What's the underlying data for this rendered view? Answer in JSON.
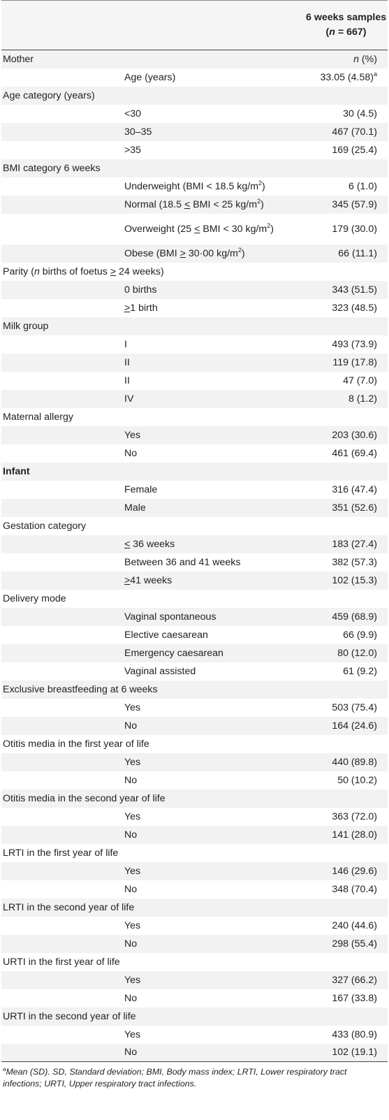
{
  "header": {
    "col_title": "6 weeks samples",
    "n_prefix": "(",
    "n_var": "n",
    "n_rest": " = 667)"
  },
  "rows": [
    {
      "label": "Mother",
      "sub": "",
      "value": "",
      "value_html": "<i>n</i> (%)"
    },
    {
      "label": "",
      "sub": "Age (years)",
      "value": "",
      "value_html": "33.05 (4.58)<sup>a</sup>"
    },
    {
      "label": "Age category (years)",
      "sub": "",
      "value": ""
    },
    {
      "label": "",
      "sub": "<30",
      "value": "30 (4.5)"
    },
    {
      "label": "",
      "sub": "30–35",
      "value": "467 (70.1)"
    },
    {
      "label": "",
      "sub": ">35",
      "value": "169 (25.4)"
    },
    {
      "label": "BMI category 6 weeks",
      "sub": "",
      "value": ""
    },
    {
      "label": "",
      "sub": "",
      "sub_html": "Underweight (BMI &lt; 18.5 kg/m<sup>2</sup>)",
      "value": "6 (1.0)"
    },
    {
      "label": "",
      "sub": "",
      "sub_html": "Normal (18.5 <u>&lt;</u> BMI &lt; 25 kg/m<sup>2</sup>)",
      "value": "345 (57.9)"
    },
    {
      "label": "",
      "sub": "",
      "sub_html": "Overweight (25 <u>&lt;</u> BMI &lt; 30 kg/m<sup>2</sup>)",
      "value": "179 (30.0)",
      "tall": true
    },
    {
      "label": "",
      "sub": "",
      "sub_html": "Obese (BMI <u>&gt;</u> 30·00 kg/m<sup>2</sup>)",
      "value": "66 (11.1)"
    },
    {
      "label": "",
      "label_html": "Parity (<i>n</i> births of foetus <u>&gt;</u> 24 weeks)",
      "sub": "",
      "value": ""
    },
    {
      "label": "",
      "sub": "0 births",
      "value": "343 (51.5)"
    },
    {
      "label": "",
      "sub": "",
      "sub_html": "<u>&gt;</u>1 birth",
      "value": "323 (48.5)"
    },
    {
      "label": "Milk group",
      "sub": "",
      "value": ""
    },
    {
      "label": "",
      "sub": "I",
      "value": "493 (73.9)"
    },
    {
      "label": "",
      "sub": "II",
      "value": "119 (17.8)"
    },
    {
      "label": "",
      "sub": "II",
      "value": "47 (7.0)"
    },
    {
      "label": "",
      "sub": "IV",
      "value": "8 (1.2)"
    },
    {
      "label": "Maternal allergy",
      "sub": "",
      "value": ""
    },
    {
      "label": "",
      "sub": "Yes",
      "value": "203 (30.6)"
    },
    {
      "label": "",
      "sub": "No",
      "value": "461 (69.4)"
    },
    {
      "label": "Infant",
      "sub": "",
      "value": "",
      "bold": true
    },
    {
      "label": "",
      "sub": "Female",
      "value": "316 (47.4)"
    },
    {
      "label": "",
      "sub": "Male",
      "value": "351 (52.6)"
    },
    {
      "label": "Gestation category",
      "sub": "",
      "value": ""
    },
    {
      "label": "",
      "sub": "",
      "sub_html": "<u>&lt;</u> 36 weeks",
      "value": "183 (27.4)"
    },
    {
      "label": "",
      "sub": "Between 36 and 41 weeks",
      "value": "382 (57.3)"
    },
    {
      "label": "",
      "sub": "",
      "sub_html": "<u>&gt;</u>41 weeks",
      "value": "102 (15.3)"
    },
    {
      "label": "Delivery mode",
      "sub": "",
      "value": ""
    },
    {
      "label": "",
      "sub": "Vaginal spontaneous",
      "value": "459 (68.9)"
    },
    {
      "label": "",
      "sub": "Elective caesarean",
      "value": "66 (9.9)"
    },
    {
      "label": "",
      "sub": "Emergency caesarean",
      "value": "80 (12.0)"
    },
    {
      "label": "",
      "sub": "Vaginal assisted",
      "value": "61 (9.2)"
    },
    {
      "label": "Exclusive breastfeeding at 6 weeks",
      "sub": "",
      "value": ""
    },
    {
      "label": "",
      "sub": "Yes",
      "value": "503 (75.4)"
    },
    {
      "label": "",
      "sub": "No",
      "value": "164 (24.6)"
    },
    {
      "label": "Otitis media in the first year of life",
      "sub": "",
      "value": ""
    },
    {
      "label": "",
      "sub": "Yes",
      "value": "440 (89.8)"
    },
    {
      "label": "",
      "sub": "No",
      "value": "50 (10.2)"
    },
    {
      "label": "Otitis media in the second year of life",
      "sub": "",
      "value": ""
    },
    {
      "label": "",
      "sub": "Yes",
      "value": "363 (72.0)"
    },
    {
      "label": "",
      "sub": "No",
      "value": "141 (28.0)"
    },
    {
      "label": "LRTI in the first year of life",
      "sub": "",
      "value": ""
    },
    {
      "label": "",
      "sub": "Yes",
      "value": "146 (29.6)"
    },
    {
      "label": "",
      "sub": "No",
      "value": "348 (70.4)"
    },
    {
      "label": "LRTI in the second year of life",
      "sub": "",
      "value": ""
    },
    {
      "label": "",
      "sub": "Yes",
      "value": "240 (44.6)"
    },
    {
      "label": "",
      "sub": "No",
      "value": "298 (55.4)"
    },
    {
      "label": "URTI in the first year of life",
      "sub": "",
      "value": ""
    },
    {
      "label": "",
      "sub": "Yes",
      "value": "327 (66.2)"
    },
    {
      "label": "",
      "sub": "No",
      "value": "167 (33.8)"
    },
    {
      "label": "URTI in the second year of life",
      "sub": "",
      "value": ""
    },
    {
      "label": "",
      "sub": "Yes",
      "value": "433 (80.9)"
    },
    {
      "label": "",
      "sub": "No",
      "value": "102 (19.1)"
    }
  ],
  "footnote": {
    "marker": "a",
    "text": "Mean (SD). SD, Standard deviation; BMI, Body mass index; LRTI, Lower respiratory tract infections; URTI, Upper respiratory tract infections."
  }
}
